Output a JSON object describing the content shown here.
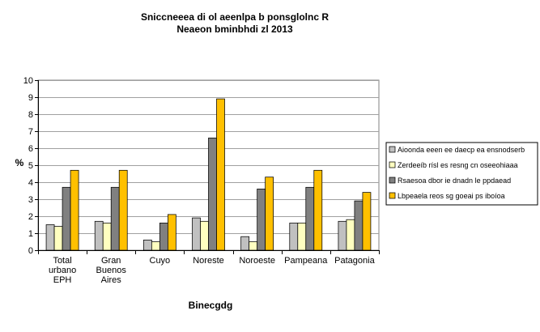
{
  "chart_data": {
    "type": "bar",
    "title": "Sniccneeea di ol aeenlpa b ponsglolnc R",
    "subtitle": "Neaeon bminbhdi zl 2013",
    "xlabel": "Binecgdg",
    "ylabel": "%",
    "ylim": [
      0,
      10
    ],
    "yticks": [
      0,
      1,
      2,
      3,
      4,
      5,
      6,
      7,
      8,
      9,
      10
    ],
    "grid": true,
    "legend_position": "right",
    "categories": [
      [
        "Total",
        "urbano",
        "EPH"
      ],
      [
        "Gran",
        "Buenos",
        "Aires"
      ],
      [
        "Cuyo"
      ],
      [
        "Noreste"
      ],
      [
        "Noroeste"
      ],
      [
        "Pampeana"
      ],
      [
        "Patagonia"
      ]
    ],
    "series": [
      {
        "name": "Aioonda eeen ee daecp ea ensnodserb",
        "color": "#c0c0c0",
        "values": [
          1.5,
          1.7,
          0.6,
          1.9,
          0.8,
          1.6,
          1.7
        ]
      },
      {
        "name": "Zerdeeíb rísl es resng cn oseeohiaaa",
        "color": "#ffffc0",
        "values": [
          1.4,
          1.6,
          0.5,
          1.7,
          0.5,
          1.6,
          1.8
        ]
      },
      {
        "name": "Rsaesoa dbor ie dnadn le ppdaead",
        "color": "#808080",
        "values": [
          3.7,
          3.7,
          1.6,
          6.6,
          3.6,
          3.7,
          2.9
        ]
      },
      {
        "name": "Lbpeaela reos sg goeai ps iboíoa",
        "color": "#ffc000",
        "values": [
          4.7,
          4.7,
          2.1,
          8.9,
          4.3,
          4.7,
          3.4
        ]
      }
    ]
  }
}
